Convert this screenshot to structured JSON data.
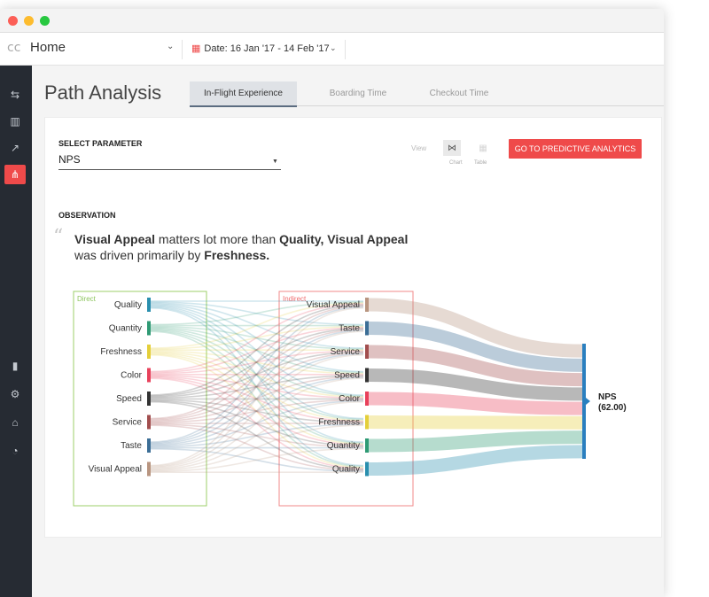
{
  "window": {
    "controls": [
      {
        "name": "close",
        "color": "#fc5f57"
      },
      {
        "name": "minimize",
        "color": "#fdbc2e"
      },
      {
        "name": "maximize",
        "color": "#28c840"
      }
    ]
  },
  "topbar": {
    "logo": "cc",
    "home_label": "Home",
    "date_label": "Date: 16 Jan '17 - 14 Feb '17"
  },
  "sidebar": {
    "items": [
      {
        "icon": "paths-icon",
        "glyph": "⇆",
        "active": false
      },
      {
        "icon": "bar-chart-icon",
        "glyph": "▥",
        "active": false
      },
      {
        "icon": "line-chart-icon",
        "glyph": "↗",
        "active": false
      },
      {
        "icon": "flow-icon",
        "glyph": "⋔",
        "active": true
      },
      {
        "icon": "bar-settings-icon",
        "glyph": "▮",
        "active": false
      },
      {
        "icon": "gears-icon",
        "glyph": "⚙",
        "active": false
      },
      {
        "icon": "bank-icon",
        "glyph": "⌂",
        "active": false
      },
      {
        "icon": "gauge-icon",
        "glyph": "◔",
        "active": false
      }
    ]
  },
  "page": {
    "title": "Path Analysis",
    "tabs": [
      {
        "label": "In-Flight Experience",
        "active": true
      },
      {
        "label": "Boarding Time",
        "active": false
      },
      {
        "label": "Checkout Time",
        "active": false
      }
    ]
  },
  "card": {
    "select_label": "SELECT PARAMETER",
    "select_value": "NPS",
    "view_label": "View",
    "view_options": [
      "Chart",
      "Table"
    ],
    "cta_label": "GO TO PREDICTIVE ANALYTICS",
    "observation_label": "OBSERVATION",
    "observation": {
      "b1": "Visual Appeal",
      "t1": " matters lot more than ",
      "b2": "Quality, Visual Appeal",
      "t2": " was driven primarily by ",
      "b3": "Freshness."
    }
  },
  "chart_data": {
    "type": "sankey",
    "direct_label": "Direct",
    "indirect_label": "Indirect",
    "direct_nodes": [
      {
        "label": "Quality",
        "color": "#2a8fae"
      },
      {
        "label": "Quantity",
        "color": "#2f9a74"
      },
      {
        "label": "Freshness",
        "color": "#e4cf3a"
      },
      {
        "label": "Color",
        "color": "#e8415b"
      },
      {
        "label": "Speed",
        "color": "#333333"
      },
      {
        "label": "Service",
        "color": "#a24e4e"
      },
      {
        "label": "Taste",
        "color": "#3c6e96"
      },
      {
        "label": "Visual Appeal",
        "color": "#b89580"
      }
    ],
    "indirect_nodes": [
      {
        "label": "Visual Appeal",
        "color": "#b89580"
      },
      {
        "label": "Taste",
        "color": "#3c6e96"
      },
      {
        "label": "Service",
        "color": "#a24e4e"
      },
      {
        "label": "Speed",
        "color": "#333333"
      },
      {
        "label": "Color",
        "color": "#e8415b"
      },
      {
        "label": "Freshness",
        "color": "#e4cf3a"
      },
      {
        "label": "Quantity",
        "color": "#2f9a74"
      },
      {
        "label": "Quality",
        "color": "#2a8fae"
      }
    ],
    "target": {
      "label": "NPS",
      "value": "(62.00)",
      "color": "#2a7fbf"
    }
  }
}
